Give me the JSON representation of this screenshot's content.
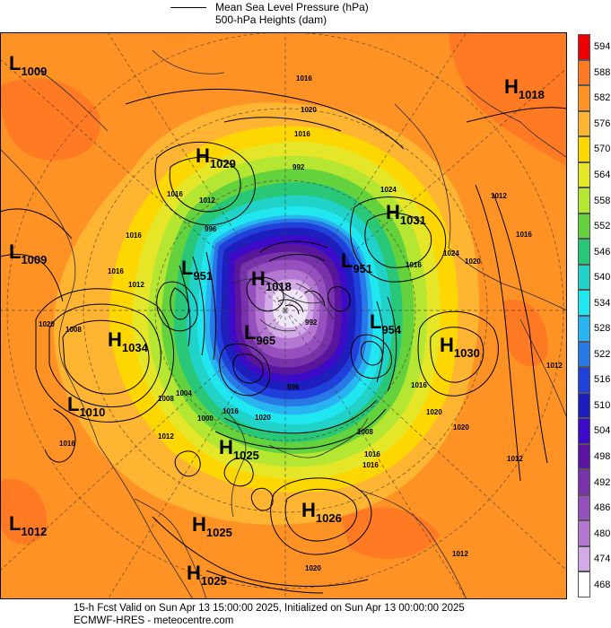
{
  "legend": {
    "line1": "Mean Sea Level Pressure (hPa)",
    "line2": "500-hPa Heights (dam)"
  },
  "colorbar": {
    "levels": [
      "594",
      "588",
      "582",
      "576",
      "570",
      "564",
      "558",
      "552",
      "546",
      "540",
      "534",
      "528",
      "522",
      "516",
      "510",
      "504",
      "498",
      "492",
      "486",
      "480",
      "474",
      "468"
    ],
    "colors": [
      "#ee0000",
      "#ff7a22",
      "#ff9224",
      "#ffb432",
      "#ffd700",
      "#e6e629",
      "#b4e632",
      "#64d23c",
      "#28c878",
      "#20d2c8",
      "#20e6f0",
      "#28b4f0",
      "#2878e6",
      "#2040dc",
      "#1e1ebe",
      "#3c0ac8",
      "#5a14a0",
      "#7832aa",
      "#9650be",
      "#b478d2",
      "#d2aae6",
      "#ffffff"
    ]
  },
  "centers": [
    {
      "type": "L",
      "value": "1009"
    },
    {
      "type": "H",
      "value": "1029"
    },
    {
      "type": "H",
      "value": "1018"
    },
    {
      "type": "H",
      "value": "1031"
    },
    {
      "type": "L",
      "value": "1009"
    },
    {
      "type": "L",
      "value": "951"
    },
    {
      "type": "H",
      "value": "1018"
    },
    {
      "type": "L",
      "value": "951"
    },
    {
      "type": "H",
      "value": "1034"
    },
    {
      "type": "L",
      "value": "965"
    },
    {
      "type": "L",
      "value": "954"
    },
    {
      "type": "H",
      "value": "1030"
    },
    {
      "type": "L",
      "value": "1010"
    },
    {
      "type": "H",
      "value": "1025"
    },
    {
      "type": "H",
      "value": "1026"
    },
    {
      "type": "L",
      "value": "1012"
    },
    {
      "type": "H",
      "value": "1025"
    },
    {
      "type": "H",
      "value": "1025"
    }
  ],
  "isobar_labels": [
    "1016",
    "1020",
    "1016",
    "1012",
    "1016",
    "1024",
    "1016",
    "996",
    "1020",
    "1016",
    "1012",
    "1008",
    "1016",
    "1024",
    "1020",
    "1016",
    "1012",
    "1016",
    "1000",
    "1004",
    "1008",
    "1012",
    "1016",
    "1020",
    "1020",
    "1016",
    "1012",
    "1012",
    "1016",
    "1020",
    "992",
    "992",
    "996",
    "1008",
    "1020",
    "1016",
    "1012"
  ],
  "footer": {
    "line1": "15-h Fcst Valid on Sun Apr 13 15:00:00 2025, Initialized on Sun Apr 13 00:00:00 2025",
    "line2": "ECMWF-HRES  - meteocentre.com"
  }
}
